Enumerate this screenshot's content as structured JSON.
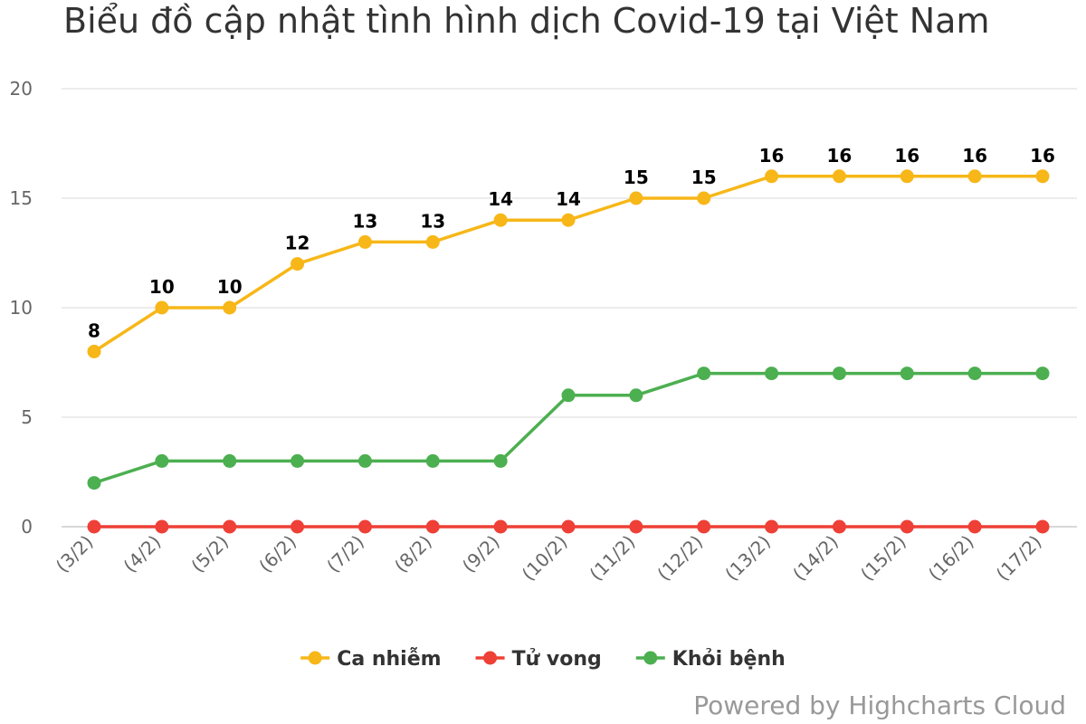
{
  "chart_data": {
    "type": "line",
    "title": "Biểu đồ cập nhật tình hình dịch Covid-19 tại Việt Nam",
    "xlabel": "",
    "ylabel": "",
    "categories": [
      "(3/2)",
      "(4/2)",
      "(5/2)",
      "(6/2)",
      "(7/2)",
      "(8/2)",
      "(9/2)",
      "(10/2)",
      "(11/2)",
      "(12/2)",
      "(13/2)",
      "(14/2)",
      "(15/2)",
      "(16/2)",
      "(17/2)"
    ],
    "ylim": [
      0,
      20
    ],
    "yticks": [
      0,
      5,
      10,
      15,
      20
    ],
    "grid": true,
    "legend_position": "bottom-center",
    "series": [
      {
        "name": "Ca nhiễm",
        "color": "#f7b718",
        "values": [
          8,
          10,
          10,
          12,
          13,
          13,
          14,
          14,
          15,
          15,
          16,
          16,
          16,
          16,
          16
        ],
        "data_labels": true
      },
      {
        "name": "Tử vong",
        "color": "#ee4036",
        "values": [
          0,
          0,
          0,
          0,
          0,
          0,
          0,
          0,
          0,
          0,
          0,
          0,
          0,
          0,
          0
        ],
        "data_labels": false
      },
      {
        "name": "Khỏi bệnh",
        "color": "#4caf50",
        "values": [
          2,
          3,
          3,
          3,
          3,
          3,
          3,
          6,
          6,
          7,
          7,
          7,
          7,
          7,
          7
        ],
        "data_labels": false
      }
    ],
    "credits": "Powered by Highcharts Cloud"
  }
}
